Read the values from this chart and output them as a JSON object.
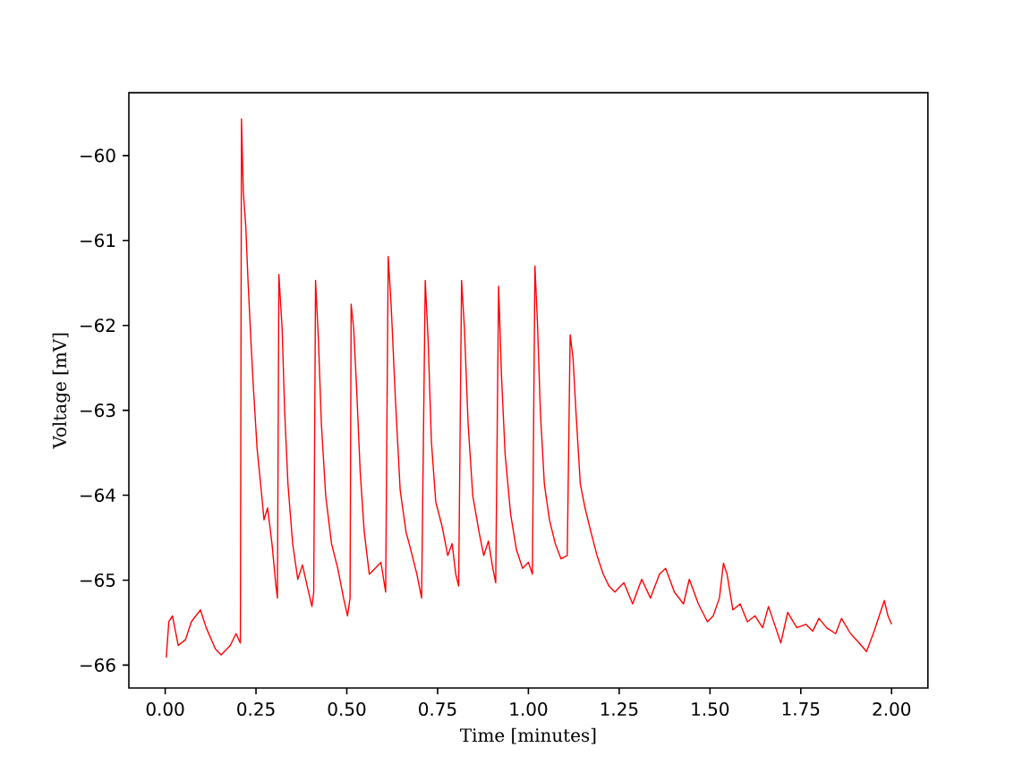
{
  "chart_data": {
    "type": "line",
    "xlabel": "Time [minutes]",
    "ylabel": "Voltage [mV]",
    "xlim": [
      -0.1,
      2.1
    ],
    "ylim": [
      -66.27,
      -59.26
    ],
    "xticks": [
      {
        "value": 0,
        "label": "0.00"
      },
      {
        "value": 0.25,
        "label": "0.25"
      },
      {
        "value": 0.5,
        "label": "0.50"
      },
      {
        "value": 0.75,
        "label": "0.75"
      },
      {
        "value": 1,
        "label": "1.00"
      },
      {
        "value": 1.25,
        "label": "1.25"
      },
      {
        "value": 1.5,
        "label": "1.50"
      },
      {
        "value": 1.75,
        "label": "1.75"
      },
      {
        "value": 2,
        "label": "2.00"
      }
    ],
    "yticks": [
      {
        "value": -66,
        "label": "−66"
      },
      {
        "value": -65,
        "label": "−65"
      },
      {
        "value": -64,
        "label": "−64"
      },
      {
        "value": -63,
        "label": "−63"
      },
      {
        "value": -62,
        "label": "−62"
      },
      {
        "value": -61,
        "label": "−61"
      },
      {
        "value": -60,
        "label": "−60"
      }
    ],
    "marker": "none",
    "line_style": "solid",
    "x": [
      0.003,
      0.01,
      0.02,
      0.036,
      0.056,
      0.072,
      0.097,
      0.113,
      0.138,
      0.154,
      0.179,
      0.195,
      0.207,
      0.21,
      0.215,
      0.222,
      0.228,
      0.236,
      0.243,
      0.253,
      0.266,
      0.272,
      0.282,
      0.294,
      0.305,
      0.309,
      0.313,
      0.322,
      0.329,
      0.338,
      0.351,
      0.365,
      0.378,
      0.391,
      0.404,
      0.409,
      0.414,
      0.422,
      0.43,
      0.442,
      0.458,
      0.475,
      0.491,
      0.502,
      0.509,
      0.512,
      0.519,
      0.527,
      0.537,
      0.548,
      0.562,
      0.578,
      0.594,
      0.607,
      0.614,
      0.622,
      0.634,
      0.647,
      0.663,
      0.676,
      0.693,
      0.706,
      0.716,
      0.724,
      0.733,
      0.745,
      0.762,
      0.778,
      0.79,
      0.8,
      0.808,
      0.816,
      0.824,
      0.834,
      0.847,
      0.864,
      0.877,
      0.89,
      0.902,
      0.91,
      0.918,
      0.926,
      0.936,
      0.951,
      0.967,
      0.984,
      1.0,
      1.011,
      1.018,
      1.025,
      1.033,
      1.044,
      1.058,
      1.074,
      1.09,
      1.107,
      1.115,
      1.123,
      1.131,
      1.143,
      1.156,
      1.172,
      1.189,
      1.206,
      1.222,
      1.238,
      1.263,
      1.287,
      1.312,
      1.336,
      1.361,
      1.378,
      1.402,
      1.427,
      1.443,
      1.468,
      1.493,
      1.509,
      1.526,
      1.537,
      1.547,
      1.563,
      1.583,
      1.603,
      1.624,
      1.645,
      1.661,
      1.681,
      1.695,
      1.714,
      1.739,
      1.764,
      1.783,
      1.8,
      1.821,
      1.846,
      1.862,
      1.887,
      1.911,
      1.931,
      1.952,
      1.969,
      1.98,
      1.99,
      2.0
    ],
    "series": [
      {
        "color": "#ff0000",
        "values": [
          -65.91,
          -65.49,
          -65.42,
          -65.77,
          -65.7,
          -65.49,
          -65.35,
          -65.56,
          -65.81,
          -65.88,
          -65.77,
          -65.63,
          -65.74,
          -59.57,
          -60.42,
          -60.84,
          -61.47,
          -62.18,
          -62.74,
          -63.45,
          -64.01,
          -64.29,
          -64.15,
          -64.57,
          -65.07,
          -65.21,
          -61.4,
          -62.04,
          -63.02,
          -63.87,
          -64.57,
          -64.99,
          -64.82,
          -65.07,
          -65.31,
          -65.14,
          -61.47,
          -62.18,
          -63.16,
          -64.01,
          -64.57,
          -64.86,
          -65.21,
          -65.42,
          -65.21,
          -61.75,
          -62.04,
          -62.74,
          -63.73,
          -64.43,
          -64.93,
          -64.86,
          -64.79,
          -65.14,
          -61.19,
          -61.75,
          -62.88,
          -63.94,
          -64.43,
          -64.64,
          -64.93,
          -65.21,
          -61.47,
          -62.18,
          -63.37,
          -64.08,
          -64.36,
          -64.71,
          -64.57,
          -64.93,
          -65.07,
          -61.47,
          -62.04,
          -63.16,
          -64.01,
          -64.43,
          -64.71,
          -64.54,
          -64.86,
          -65.03,
          -61.54,
          -62.6,
          -63.52,
          -64.22,
          -64.64,
          -64.86,
          -64.79,
          -64.93,
          -61.3,
          -61.97,
          -63.02,
          -63.87,
          -64.29,
          -64.57,
          -64.75,
          -64.71,
          -62.11,
          -62.39,
          -63.02,
          -63.87,
          -64.15,
          -64.43,
          -64.71,
          -64.93,
          -65.07,
          -65.14,
          -65.03,
          -65.28,
          -64.99,
          -65.21,
          -64.93,
          -64.86,
          -65.14,
          -65.28,
          -64.99,
          -65.28,
          -65.49,
          -65.42,
          -65.21,
          -64.8,
          -64.93,
          -65.35,
          -65.28,
          -65.49,
          -65.42,
          -65.56,
          -65.31,
          -65.56,
          -65.74,
          -65.38,
          -65.56,
          -65.52,
          -65.6,
          -65.45,
          -65.56,
          -65.63,
          -65.45,
          -65.63,
          -65.74,
          -65.84,
          -65.6,
          -65.38,
          -65.24,
          -65.42,
          -65.52
        ]
      }
    ]
  }
}
